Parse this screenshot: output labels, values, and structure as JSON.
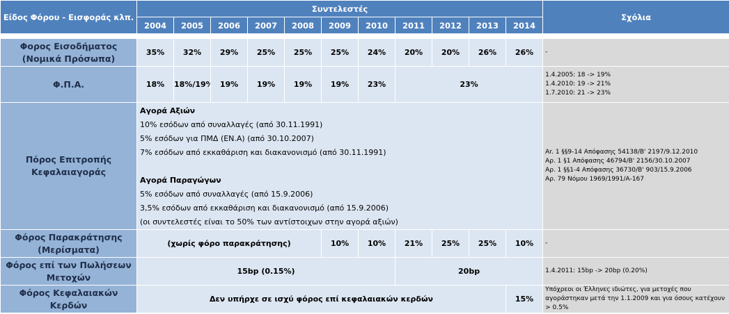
{
  "header": {
    "type_label": "Είδος Φόρου - Εισφοράς κλπ.",
    "rates_label": "Συντελεστές",
    "years": [
      "2004",
      "2005",
      "2006",
      "2007",
      "2008",
      "2009",
      "2010",
      "2011",
      "2012",
      "2013",
      "2014"
    ],
    "comments_label": "Σχόλια"
  },
  "rows": {
    "income": {
      "label_line1": "Φορος Εισοδήματος",
      "label_line2": "(Νομικά Πρόσωπα)",
      "values": [
        "35%",
        "32%",
        "29%",
        "25%",
        "25%",
        "25%",
        "24%",
        "20%",
        "20%",
        "26%",
        "26%"
      ],
      "comment": "-"
    },
    "vat": {
      "label": "Φ.Π.Α.",
      "values": [
        "18%",
        "18%/19%",
        "19%",
        "19%",
        "19%",
        "19%",
        "23%"
      ],
      "merged_value": "23%",
      "comments": [
        "1.4.2005: 18 -> 19%",
        "1.4.2010: 19 -> 21%",
        "1.7.2010: 21 -> 23%"
      ]
    },
    "cmc": {
      "label_line1": "Πόρος Επιτροπής",
      "label_line2": "Κεφαλαιαγοράς",
      "stock_title": "Αγορά Αξιών",
      "stock_lines": [
        "10% εσόδων από συναλλαγές (από 30.11.1991)",
        "5% εσόδων για ΠΜΔ (ΕΝ.Α) (από 30.10.2007)",
        "7% εσόδων από εκκαθάριση και διακανονισμό (από 30.11.1991)"
      ],
      "deriv_title": "Αγορά Παραγώγων",
      "deriv_lines": [
        "5% εσόδων από συναλλαγές (από 15.9.2006)",
        "3,5% εσόδων από εκκαθάριση και διακανονισμό (από 15.9.2006)",
        "(οι συντελεστές είναι το 50% των αντίστοιχων στην αγορά αξιών)"
      ],
      "comments": [
        "Αr. 1 §§9-14 Απόφασης 54138/Β' 2197/9.12.2010",
        "Αρ. 1 §1 Απόφασης 46794/Β' 2156/30.10.2007",
        "Αρ. 1 §§1-4 Απόφασης 36730/Β' 903/15.9.2006",
        "Αρ. 79 Νόμου 1969/1991/Α-167"
      ]
    },
    "withholding": {
      "label_line1": "Φόρος Παρακράτησης",
      "label_line2": "(Μερίσματα)",
      "merged_value": "(χωρίς φόρο παρακράτησης)",
      "values": [
        "10%",
        "10%",
        "21%",
        "25%",
        "25%",
        "10%"
      ],
      "comment": "-"
    },
    "sales": {
      "label_line1": "Φόρος επί των Πωλήσεων",
      "label_line2": "Μετοχών",
      "value_a": "15bp (0.15%)",
      "value_b": "20bp",
      "comment": "1.4.2011: 15bp -> 20bp (0.20%)"
    },
    "capgains": {
      "label": "Φόρος Κεφαλαιακών Κερδών",
      "merged_value": "Δεν υπήρχε σε ισχύ  φόρος επί κεφαλαιακών κερδών",
      "value_2014": "15%",
      "comment_lines": [
        "Υπόχρεοι οι Έλληνες ιδιώτες, για μετοχές που",
        "αγοράστηκαν μετά την 1.1.2009 και για όσους κατέχουν",
        "> 0.5%"
      ]
    }
  }
}
